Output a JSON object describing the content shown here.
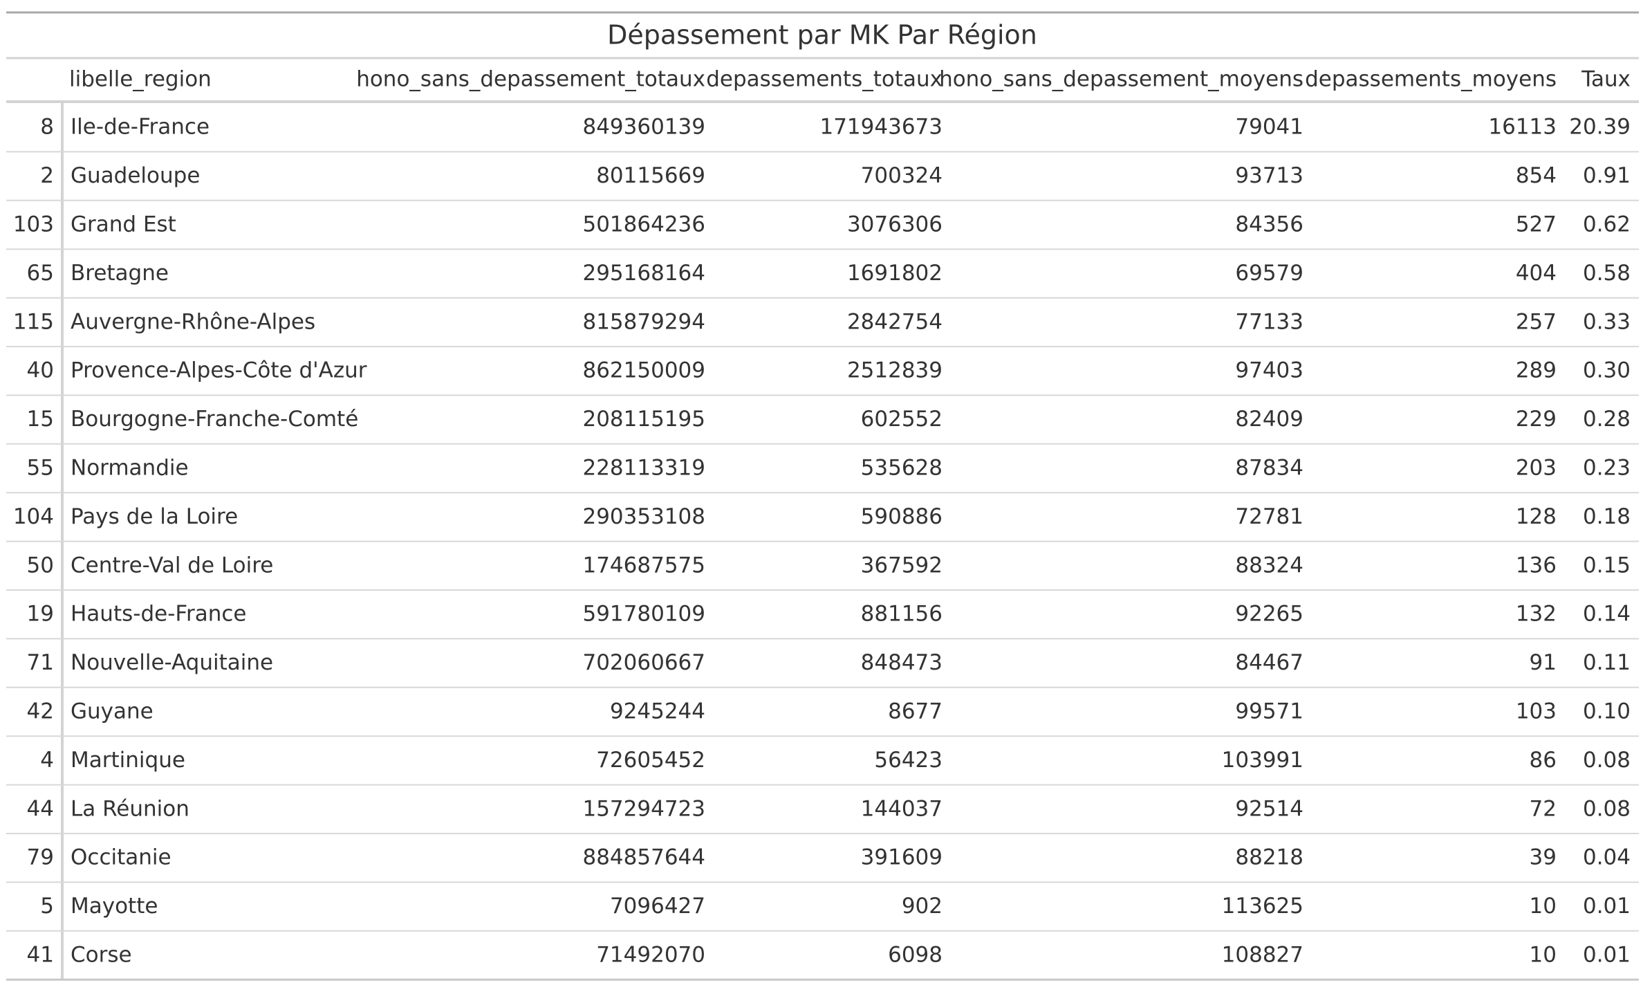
{
  "title": "Dépassement par MK Par Région",
  "columns": [
    "libelle_region",
    "hono_sans_depassement_totaux",
    "depassements_totaux",
    "hono_sans_depassement_moyens",
    "depassements_moyens",
    "Taux"
  ],
  "rows": [
    [
      "8",
      "Ile-de-France",
      "849360139",
      "171943673",
      "79041",
      "16113",
      "20.39"
    ],
    [
      "2",
      "Guadeloupe",
      "80115669",
      "700324",
      "93713",
      "854",
      "0.91"
    ],
    [
      "103",
      "Grand Est",
      "501864236",
      "3076306",
      "84356",
      "527",
      "0.62"
    ],
    [
      "65",
      "Bretagne",
      "295168164",
      "1691802",
      "69579",
      "404",
      "0.58"
    ],
    [
      "115",
      "Auvergne-Rhône-Alpes",
      "815879294",
      "2842754",
      "77133",
      "257",
      "0.33"
    ],
    [
      "40",
      "Provence-Alpes-Côte d'Azur",
      "862150009",
      "2512839",
      "97403",
      "289",
      "0.30"
    ],
    [
      "15",
      "Bourgogne-Franche-Comté",
      "208115195",
      "602552",
      "82409",
      "229",
      "0.28"
    ],
    [
      "55",
      "Normandie",
      "228113319",
      "535628",
      "87834",
      "203",
      "0.23"
    ],
    [
      "104",
      "Pays de la Loire",
      "290353108",
      "590886",
      "72781",
      "128",
      "0.18"
    ],
    [
      "50",
      "Centre-Val de Loire",
      "174687575",
      "367592",
      "88324",
      "136",
      "0.15"
    ],
    [
      "19",
      "Hauts-de-France",
      "591780109",
      "881156",
      "92265",
      "132",
      "0.14"
    ],
    [
      "71",
      "Nouvelle-Aquitaine",
      "702060667",
      "848473",
      "84467",
      "91",
      "0.11"
    ],
    [
      "42",
      "Guyane",
      "9245244",
      "8677",
      "99571",
      "103",
      "0.10"
    ],
    [
      "4",
      "Martinique",
      "72605452",
      "56423",
      "103991",
      "86",
      "0.08"
    ],
    [
      "44",
      "La Réunion",
      "157294723",
      "144037",
      "92514",
      "72",
      "0.08"
    ],
    [
      "79",
      "Occitanie",
      "884857644",
      "391609",
      "88218",
      "39",
      "0.04"
    ],
    [
      "5",
      "Mayotte",
      "7096427",
      "902",
      "113625",
      "10",
      "0.01"
    ],
    [
      "41",
      "Corse",
      "71492070",
      "6098",
      "108827",
      "10",
      "0.01"
    ]
  ]
}
